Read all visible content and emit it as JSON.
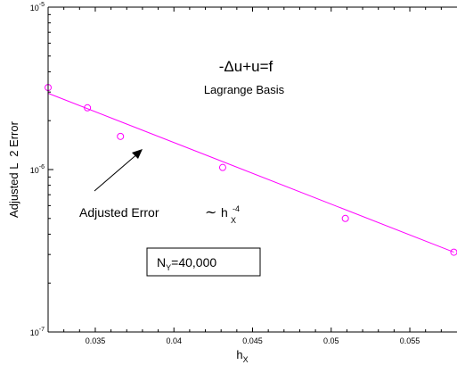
{
  "chart_data": {
    "type": "scatter",
    "x_scale": "linear",
    "y_scale": "log",
    "xlim": [
      0.032,
      0.058
    ],
    "ylim": [
      1e-07,
      1e-05
    ],
    "x_ticks": [
      0.035,
      0.04,
      0.045,
      0.05,
      0.055
    ],
    "x_tick_labels": [
      "0.035",
      "0.04",
      "0.045",
      "0.05",
      "0.055"
    ],
    "y_ticks": [
      1e-07,
      1e-06,
      1e-05
    ],
    "y_tick_labels": [
      {
        "base": "10",
        "exp": "-7"
      },
      {
        "base": "10",
        "exp": "-6"
      },
      {
        "base": "10",
        "exp": "-5"
      }
    ],
    "xlabel": {
      "main": "h",
      "sub": "X"
    },
    "ylabel": "Adjusted L  2 Error",
    "grid": false,
    "color": "#ff00ff",
    "series": [
      {
        "style": "markers",
        "marker": "circle",
        "x": [
          0.032,
          0.0345,
          0.0366,
          0.0431,
          0.0509,
          0.0578
        ],
        "y": [
          3.2e-06,
          2.4e-06,
          1.6e-06,
          1.03e-06,
          5e-07,
          3.1e-07
        ]
      },
      {
        "style": "line",
        "x": [
          0.032,
          0.0578
        ],
        "y": [
          2.95e-06,
          3.1e-07
        ]
      }
    ],
    "annotations": {
      "equation": "-Δu+u=f",
      "basis": "Lagrange Basis",
      "rate_text": "Adjusted Error",
      "rate_tilde": "∼",
      "rate_h": "h",
      "rate_sub": "X",
      "rate_sup": "-4",
      "box_main": "N",
      "box_sub": "Y",
      "box_value": "=40,000"
    }
  }
}
